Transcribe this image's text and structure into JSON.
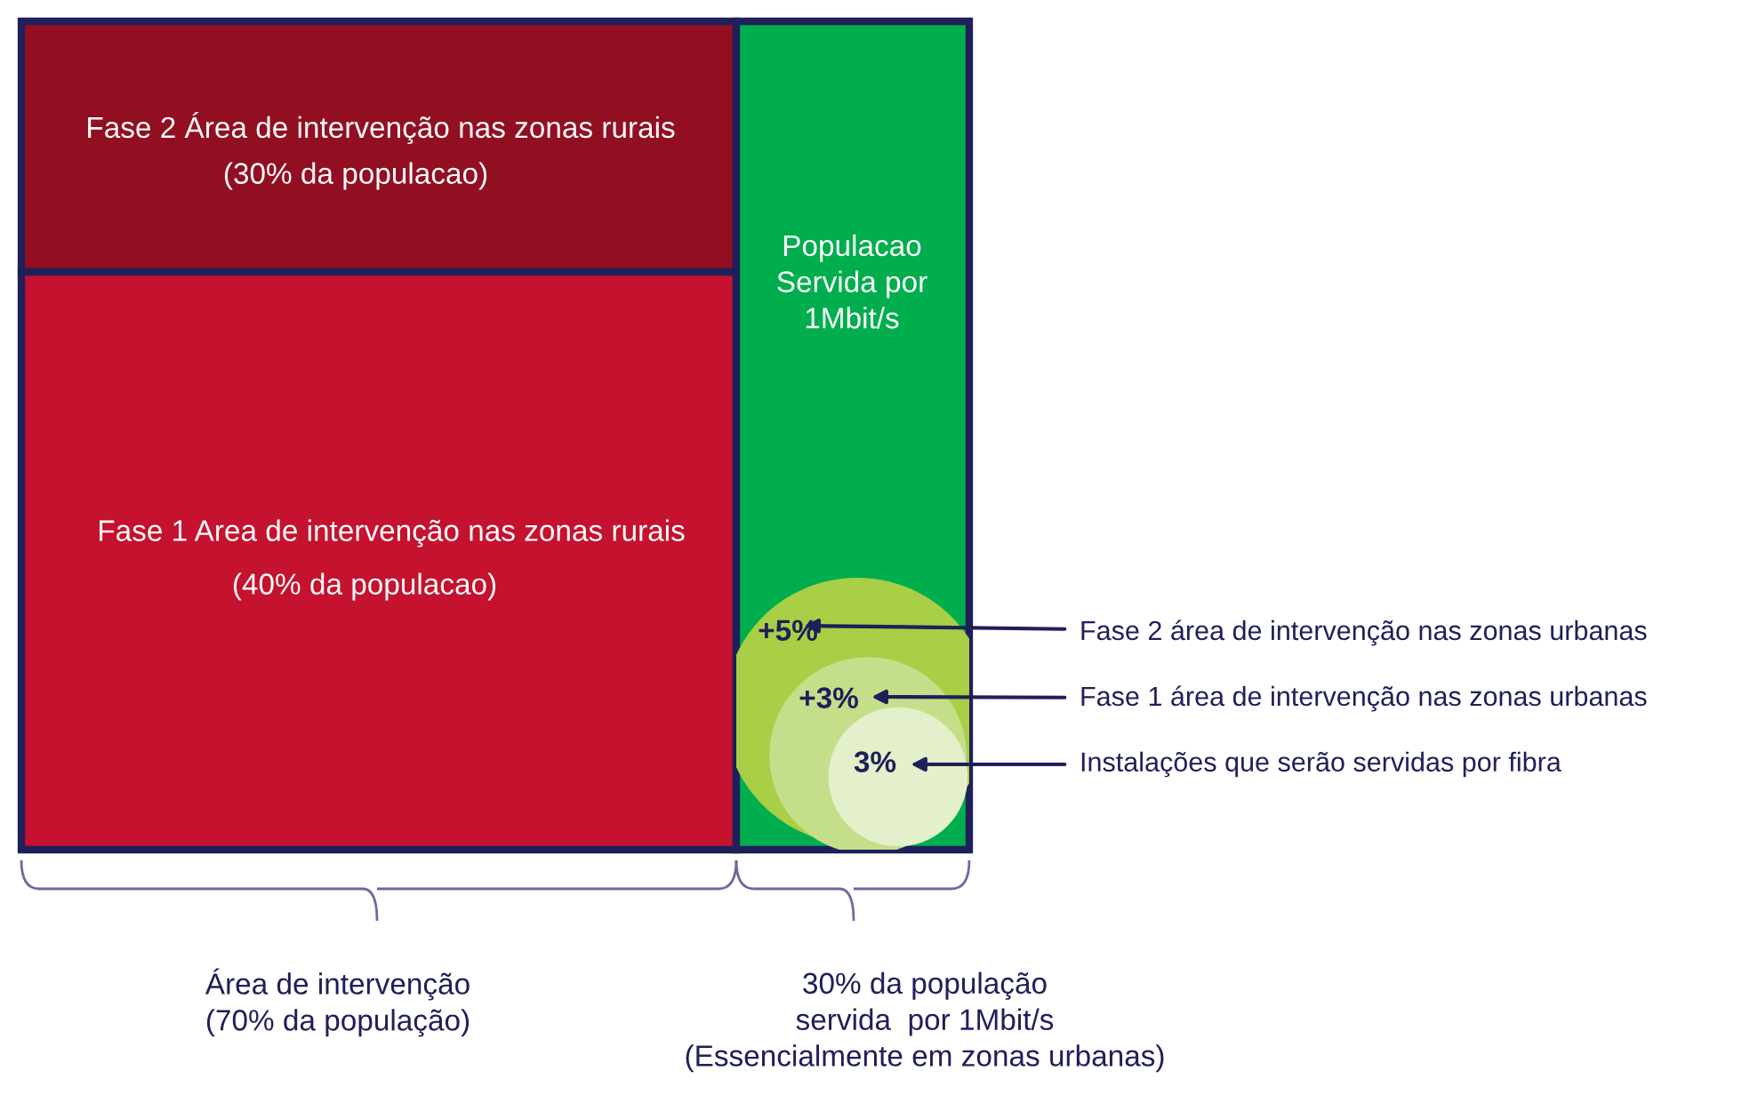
{
  "chart_data": {
    "type": "other",
    "categories": [
      "Fase 2 Área de intervenção nas zonas rurais",
      "Fase 1 Area de intervenção nas zonas rurais",
      "Populacao\nServida por\n1Mbit/s",
      "Fase 2 área de intervenção nas zonas urbanas",
      "Fase 1 área de intervenção nas zonas urbanas",
      "Instalações que serão servidas por fibra"
    ],
    "values": [
      30,
      40,
      null,
      5,
      3,
      3
    ],
    "value_labels": [
      "(30% da populacao)",
      "(40% da populacao)",
      null,
      "+5%",
      "+3%",
      "3%"
    ],
    "colors": [
      "#920f22",
      "#c4122f",
      "#00ae4d",
      "#a8cf45",
      "#c5de8a",
      "#e4efcb"
    ],
    "annotations": [
      "Área de intervenção\n(70% da população)",
      "30% da população\nservida  por 1Mbit/s\n(Essencialmente em zonas urbanas)"
    ]
  }
}
